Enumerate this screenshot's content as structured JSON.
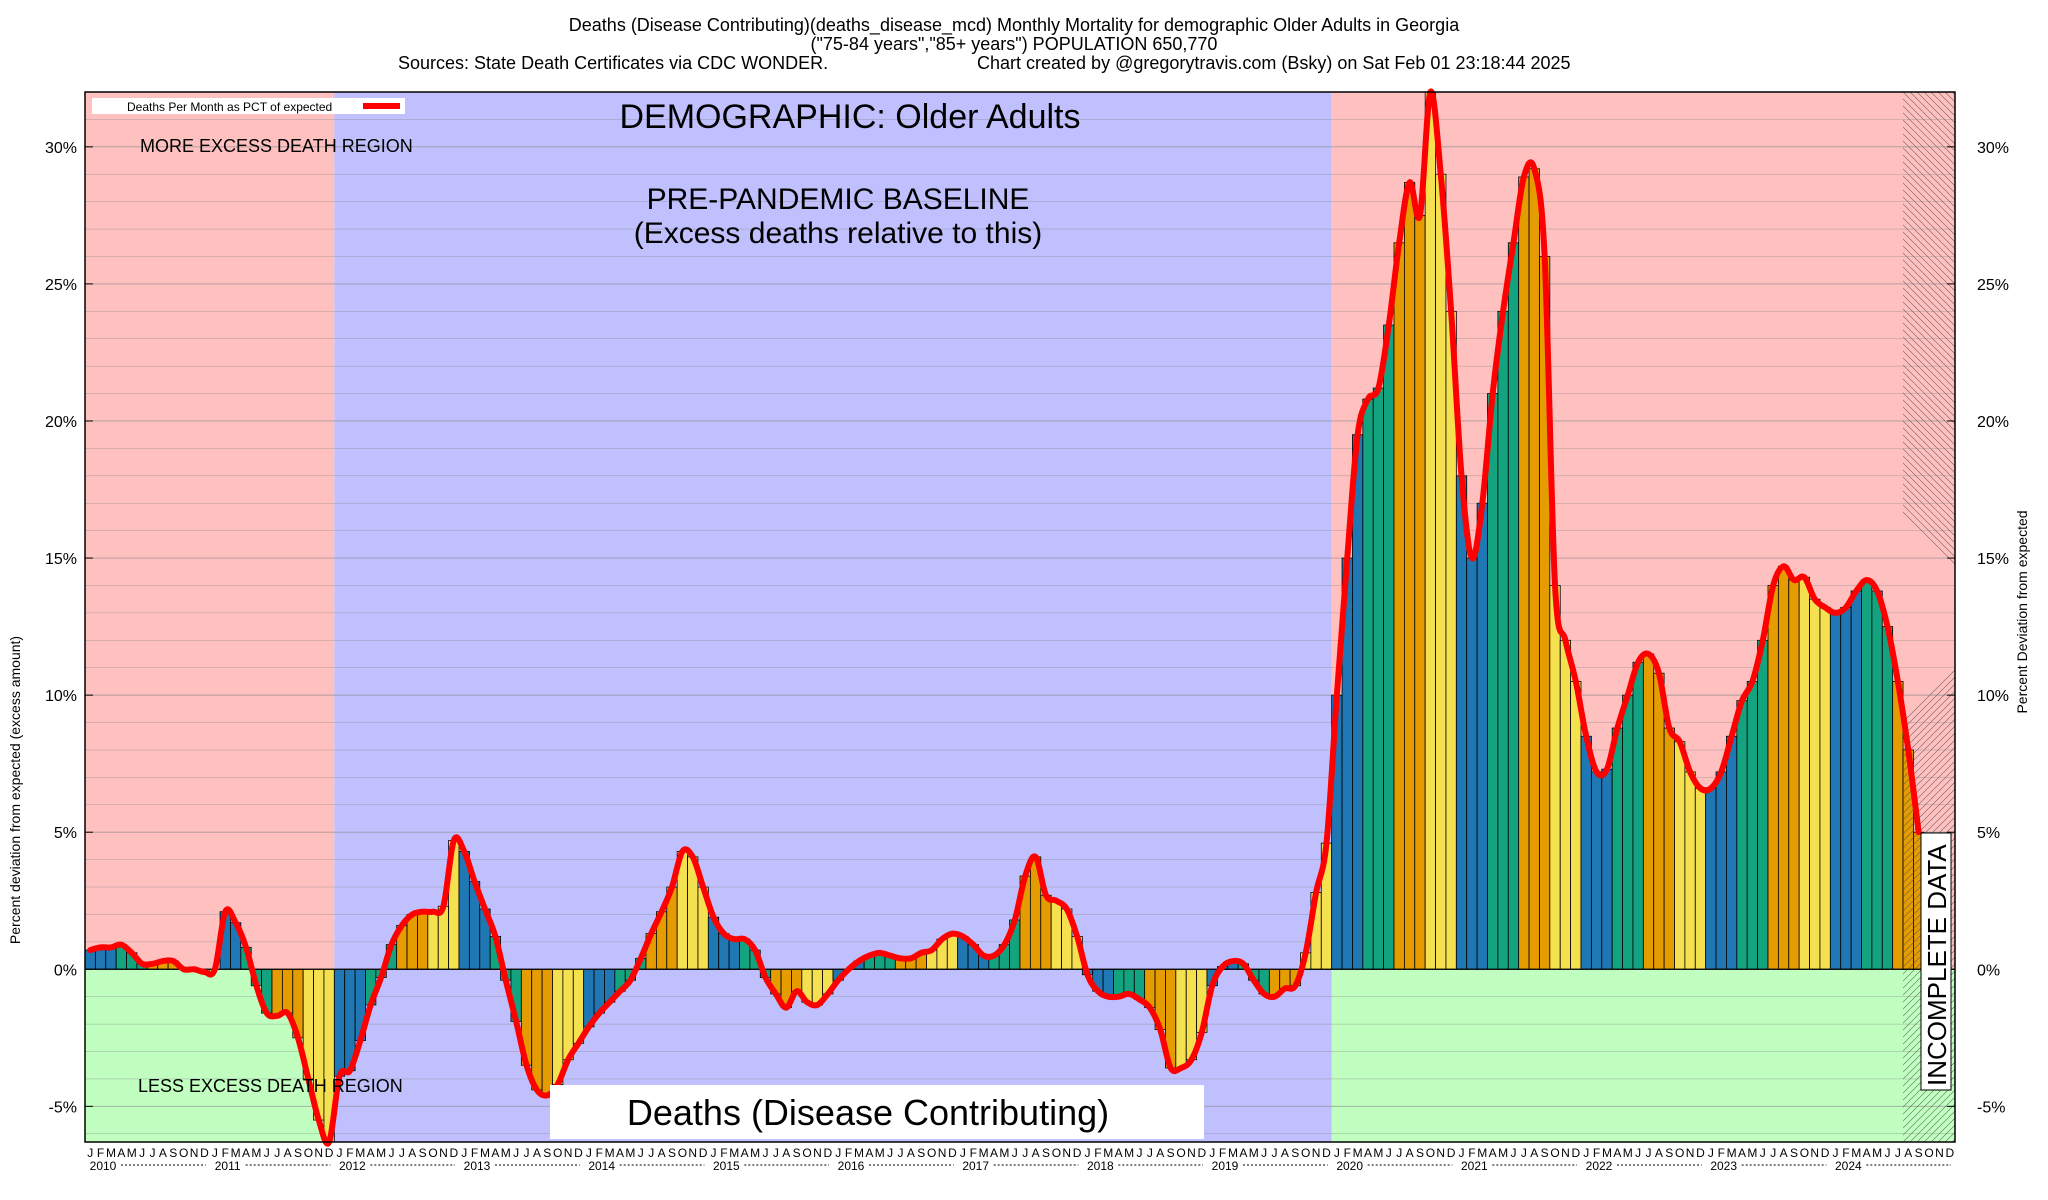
{
  "header": {
    "line1": "Deaths (Disease Contributing)(deaths_disease_mcd) Monthly Mortality for demographic Older Adults in Georgia",
    "line2": "(\"75-84 years\",\"85+ years\") POPULATION 650,770",
    "line3_left": "Sources: State Death Certificates via CDC WONDER.",
    "line3_right": "Chart created by @gregorytravis.com (Bsky) on Sat Feb 01 23:18:44 2025"
  },
  "labels": {
    "demographic": "DEMOGRAPHIC: Older Adults",
    "baseline1": "PRE-PANDEMIC BASELINE",
    "baseline2": "(Excess deaths relative to this)",
    "more_region": "MORE EXCESS DEATH REGION",
    "less_region": "LESS EXCESS DEATH REGION",
    "bottom_title": "Deaths (Disease Contributing)",
    "incomplete": "INCOMPLETE DATA",
    "legend": "Deaths Per Month as PCT of expected"
  },
  "axes": {
    "ylabel_left": "Percent deviation from expected (excess amount)",
    "ylabel_right": "Percent Deviation from expected",
    "ytick_labels": [
      "-5%",
      "0%",
      "5%",
      "10%",
      "15%",
      "20%",
      "25%",
      "30%"
    ],
    "month_letters": [
      "J",
      "F",
      "M",
      "A",
      "M",
      "J",
      "J",
      "A",
      "S",
      "O",
      "N",
      "D"
    ],
    "year_labels": [
      "2010",
      "2011",
      "2012",
      "2013",
      "2014",
      "2015",
      "2016",
      "2017",
      "2018",
      "2019",
      "2020",
      "2021",
      "2022",
      "2023",
      "2024"
    ]
  },
  "colors": {
    "excess_region": "#ffc0c0",
    "baseline_region": "#c0c0ff",
    "less_region": "#c0ffc0",
    "line": "#ff0000",
    "bar_palette": [
      "#1f77b4",
      "#14a37f",
      "#e59c00",
      "#f5e050"
    ]
  },
  "chart_data": {
    "type": "bar",
    "start": "2010-01",
    "frequency": "monthly",
    "ylim": [
      -6.3,
      32
    ],
    "baseline_period": [
      "2012-01",
      "2019-12"
    ],
    "incomplete_from": "2024-08",
    "values": [
      0.7,
      0.8,
      0.8,
      0.9,
      0.6,
      0.2,
      0.2,
      0.3,
      0.3,
      0.0,
      0.0,
      -0.1,
      0.0,
      2.1,
      1.7,
      0.8,
      -0.6,
      -1.6,
      -1.7,
      -1.6,
      -2.5,
      -4.0,
      -5.5,
      -6.3,
      -3.9,
      -3.7,
      -2.6,
      -1.3,
      -0.3,
      0.9,
      1.6,
      2.0,
      2.1,
      2.1,
      2.3,
      4.7,
      4.3,
      3.2,
      2.2,
      1.2,
      -0.4,
      -1.9,
      -3.5,
      -4.4,
      -4.6,
      -4.2,
      -3.3,
      -2.7,
      -2.1,
      -1.6,
      -1.2,
      -0.8,
      -0.4,
      0.4,
      1.3,
      2.1,
      3.0,
      4.3,
      4.1,
      3.0,
      1.9,
      1.3,
      1.1,
      1.1,
      0.7,
      -0.3,
      -0.9,
      -1.4,
      -0.8,
      -1.2,
      -1.3,
      -0.9,
      -0.4,
      0.0,
      0.3,
      0.5,
      0.6,
      0.5,
      0.4,
      0.4,
      0.6,
      0.7,
      1.1,
      1.3,
      1.2,
      0.9,
      0.5,
      0.5,
      0.9,
      1.8,
      3.4,
      4.1,
      2.7,
      2.5,
      2.2,
      1.2,
      -0.2,
      -0.8,
      -1.0,
      -1.0,
      -0.9,
      -1.1,
      -1.4,
      -2.2,
      -3.6,
      -3.6,
      -3.3,
      -2.3,
      -0.6,
      0.1,
      0.3,
      0.2,
      -0.4,
      -0.9,
      -1.0,
      -0.7,
      -0.6,
      0.6,
      2.8,
      4.6,
      10.0,
      15.0,
      19.5,
      20.8,
      21.2,
      23.5,
      26.5,
      28.7,
      27.5,
      32.0,
      29.0,
      24.0,
      18.0,
      15.0,
      17.0,
      21.0,
      24.0,
      26.5,
      28.9,
      29.2,
      26.0,
      14.0,
      12.0,
      10.5,
      8.5,
      7.2,
      7.3,
      8.8,
      10.0,
      11.2,
      11.5,
      10.8,
      8.8,
      8.3,
      7.2,
      6.6,
      6.6,
      7.2,
      8.5,
      9.8,
      10.5,
      12.0,
      14.0,
      14.7,
      14.2,
      14.3,
      13.5,
      13.2,
      13.0,
      13.2,
      13.8,
      14.2,
      13.8,
      12.5,
      10.5,
      8.0,
      5.0
    ]
  }
}
